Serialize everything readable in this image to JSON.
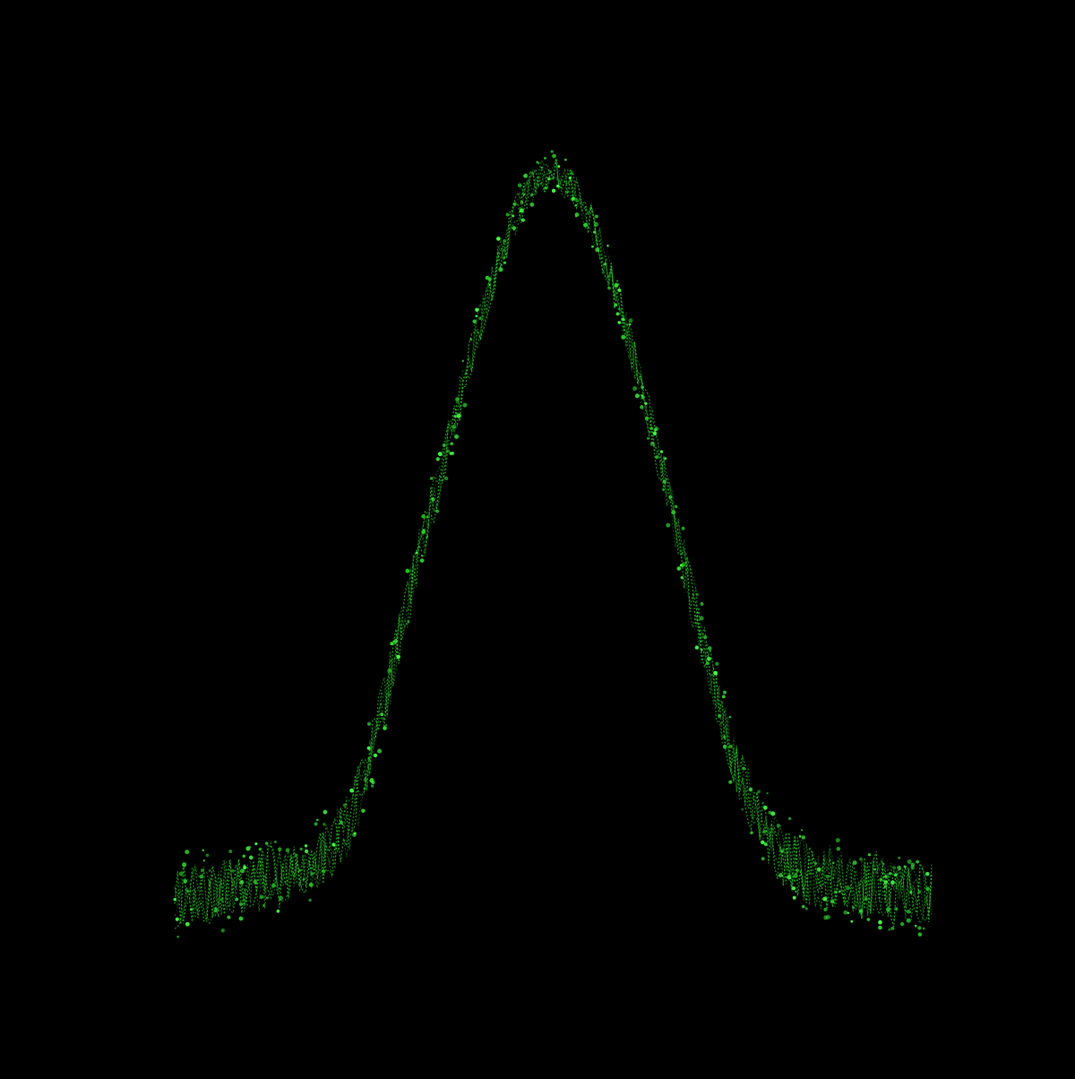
{
  "colors": {
    "background": "#000000",
    "trace": "#2bd62b",
    "trace_bright": "#46ff46"
  },
  "chart_data": {
    "type": "scatter",
    "title": "",
    "xlabel": "",
    "ylabel": "",
    "xlim": [
      -1,
      1
    ],
    "ylim": [
      -0.2,
      1.0
    ],
    "axes_visible": false,
    "grid": false,
    "legend": "none",
    "series": [
      {
        "x": [
          -1.0,
          -0.95,
          -0.9,
          -0.85,
          -0.8,
          -0.75,
          -0.7,
          -0.65,
          -0.6,
          -0.55,
          -0.5,
          -0.45,
          -0.4,
          -0.35,
          -0.3,
          -0.25,
          -0.2,
          -0.15,
          -0.1,
          -0.05,
          0.0,
          0.05,
          0.1,
          0.15,
          0.2,
          0.25,
          0.3,
          0.35,
          0.4,
          0.45,
          0.5,
          0.55,
          0.6,
          0.65,
          0.7,
          0.75,
          0.8,
          0.85,
          0.9,
          0.95,
          1.0
        ],
        "values": [
          0.0,
          0.01,
          0.0,
          0.02,
          0.01,
          0.03,
          0.02,
          0.04,
          0.06,
          0.09,
          0.16,
          0.26,
          0.37,
          0.48,
          0.58,
          0.68,
          0.78,
          0.87,
          0.94,
          0.99,
          1.0,
          0.98,
          0.93,
          0.86,
          0.77,
          0.67,
          0.56,
          0.45,
          0.34,
          0.24,
          0.16,
          0.1,
          0.06,
          0.04,
          0.02,
          0.03,
          0.01,
          0.02,
          0.0,
          0.01,
          0.0
        ]
      }
    ]
  }
}
